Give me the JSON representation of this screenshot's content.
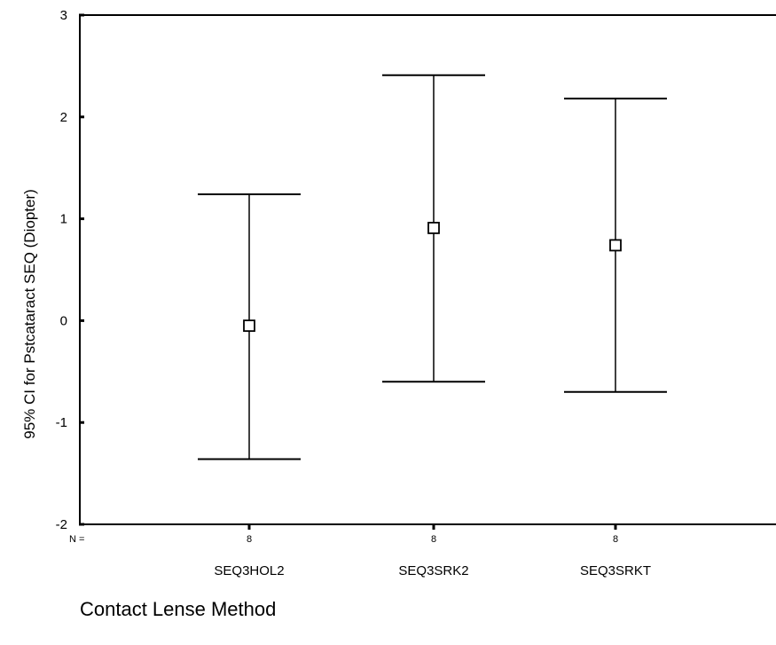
{
  "chart_data": {
    "type": "errorbar",
    "categories": [
      "SEQ3HOL2",
      "SEQ3SRK2",
      "SEQ3SRKT"
    ],
    "n_label": "N =",
    "n_values": [
      "8",
      "8",
      "8"
    ],
    "mean": [
      -0.05,
      0.91,
      0.74
    ],
    "ci_lower": [
      -1.36,
      -0.6,
      -0.7
    ],
    "ci_upper": [
      1.24,
      2.41,
      2.18
    ],
    "ylabel": "95% CI for Pstcataract SEQ (Diopter)",
    "xlabel": "Contact Lense Method",
    "ylim": [
      -2,
      3
    ],
    "yticks": [
      "3",
      "2",
      "1",
      "0",
      "-1",
      "-2"
    ],
    "ytick_values": [
      3,
      2,
      1,
      0,
      -1,
      -2
    ],
    "grid": false
  }
}
